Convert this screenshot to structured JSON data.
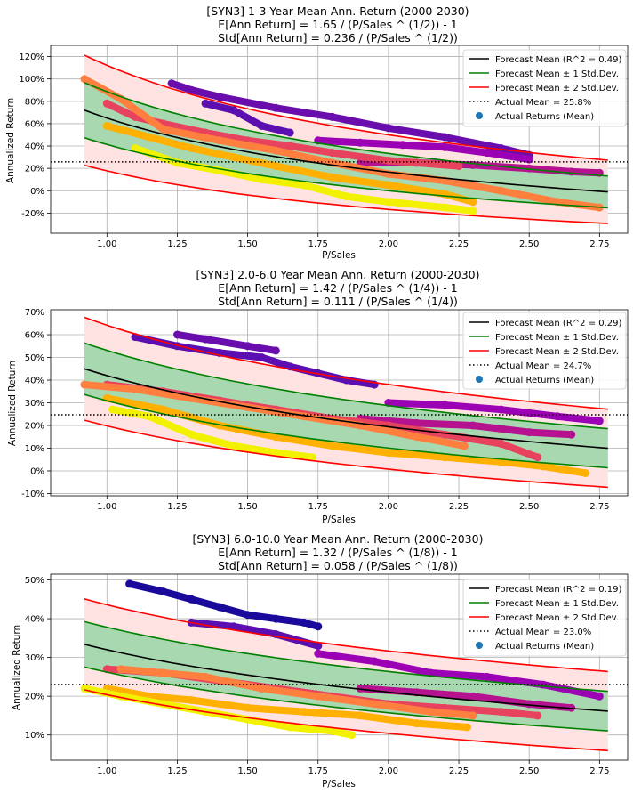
{
  "chart_data": [
    {
      "type": "scatter",
      "title_lines": [
        "[SYN3] 1-3 Year Mean Ann. Return (2000-2030)",
        "E[Ann Return] = 1.65 / (P/Sales ^ (1/2)) - 1",
        "Std[Ann Return] = 0.236 / (P/Sales ^ (1/2))"
      ],
      "xlabel": "P/Sales",
      "ylabel": "Annualized Return",
      "xlim": [
        0.8,
        2.85
      ],
      "ylim": [
        -0.38,
        1.3
      ],
      "xticks": [
        1.0,
        1.25,
        1.5,
        1.75,
        2.0,
        2.25,
        2.5,
        2.75
      ],
      "xtick_labels": [
        "1.00",
        "1.25",
        "1.50",
        "1.75",
        "2.00",
        "2.25",
        "2.50",
        "2.75"
      ],
      "yticks": [
        -0.2,
        0,
        0.2,
        0.4,
        0.6,
        0.8,
        1.0,
        1.2
      ],
      "ytick_labels": [
        "-20%",
        "0%",
        "20%",
        "40%",
        "60%",
        "80%",
        "100%",
        "120%"
      ],
      "model": {
        "a": 1.65,
        "s": 0.236,
        "p": 0.5,
        "x_range": [
          0.92,
          2.78
        ]
      },
      "actual_mean": 0.258,
      "legend": [
        "Forecast Mean (R^2 = 0.49)",
        "Forecast Mean ± 1 Std.Dev.",
        "Forecast Mean ± 2 Std.Dev.",
        "Actual Mean = 25.8%",
        "Actual Returns (Mean)"
      ],
      "scatter_series": [
        {
          "color": "#6a0dad",
          "points": [
            [
              1.23,
              0.96
            ],
            [
              1.3,
              0.9
            ],
            [
              1.4,
              0.84
            ],
            [
              1.6,
              0.74
            ],
            [
              1.8,
              0.66
            ],
            [
              2.0,
              0.56
            ],
            [
              2.2,
              0.48
            ],
            [
              2.4,
              0.38
            ],
            [
              2.5,
              0.32
            ]
          ]
        },
        {
          "color": "#5b0fb0",
          "points": [
            [
              1.35,
              0.78
            ],
            [
              1.45,
              0.72
            ],
            [
              1.55,
              0.58
            ],
            [
              1.65,
              0.52
            ]
          ]
        },
        {
          "color": "#9c00b4",
          "points": [
            [
              1.75,
              0.45
            ],
            [
              1.9,
              0.43
            ],
            [
              2.05,
              0.41
            ],
            [
              2.2,
              0.39
            ],
            [
              2.35,
              0.34
            ],
            [
              2.5,
              0.28
            ]
          ]
        },
        {
          "color": "#b5128f",
          "points": [
            [
              1.9,
              0.25
            ],
            [
              2.1,
              0.25
            ],
            [
              2.3,
              0.23
            ],
            [
              2.5,
              0.2
            ],
            [
              2.65,
              0.17
            ],
            [
              2.75,
              0.16
            ]
          ]
        },
        {
          "color": "#e8435e",
          "points": [
            [
              1.0,
              0.78
            ],
            [
              1.1,
              0.66
            ],
            [
              1.2,
              0.6
            ],
            [
              1.35,
              0.52
            ],
            [
              1.5,
              0.45
            ],
            [
              1.65,
              0.4
            ],
            [
              1.8,
              0.34
            ],
            [
              2.0,
              0.27
            ],
            [
              2.25,
              0.22
            ]
          ]
        },
        {
          "color": "#ff7f3f",
          "points": [
            [
              0.92,
              1.0
            ],
            [
              1.05,
              0.82
            ],
            [
              1.2,
              0.55
            ],
            [
              1.4,
              0.45
            ],
            [
              1.6,
              0.36
            ],
            [
              1.8,
              0.25
            ],
            [
              2.0,
              0.15
            ],
            [
              2.2,
              0.09
            ],
            [
              2.4,
              0.0
            ],
            [
              2.6,
              -0.1
            ],
            [
              2.75,
              -0.15
            ]
          ]
        },
        {
          "color": "#ffb000",
          "points": [
            [
              1.0,
              0.58
            ],
            [
              1.15,
              0.48
            ],
            [
              1.3,
              0.38
            ],
            [
              1.45,
              0.3
            ],
            [
              1.6,
              0.22
            ],
            [
              1.8,
              0.12
            ],
            [
              2.0,
              0.05
            ],
            [
              2.2,
              -0.03
            ],
            [
              2.3,
              -0.1
            ]
          ]
        },
        {
          "color": "#f2f200",
          "points": [
            [
              1.1,
              0.38
            ],
            [
              1.25,
              0.25
            ],
            [
              1.4,
              0.18
            ],
            [
              1.55,
              0.1
            ],
            [
              1.7,
              0.05
            ],
            [
              1.85,
              -0.05
            ],
            [
              2.0,
              -0.1
            ],
            [
              2.2,
              -0.15
            ],
            [
              2.3,
              -0.18
            ]
          ]
        }
      ]
    },
    {
      "type": "scatter",
      "title_lines": [
        "[SYN3] 2.0-6.0 Year Mean Ann. Return (2000-2030)",
        "E[Ann Return] = 1.42 / (P/Sales ^ (1/4)) - 1",
        "Std[Ann Return] = 0.111 / (P/Sales ^ (1/4))"
      ],
      "xlabel": "P/Sales",
      "ylabel": "Annualized Return",
      "xlim": [
        0.8,
        2.85
      ],
      "ylim": [
        -0.11,
        0.71
      ],
      "xticks": [
        1.0,
        1.25,
        1.5,
        1.75,
        2.0,
        2.25,
        2.5,
        2.75
      ],
      "xtick_labels": [
        "1.00",
        "1.25",
        "1.50",
        "1.75",
        "2.00",
        "2.25",
        "2.50",
        "2.75"
      ],
      "yticks": [
        -0.1,
        0,
        0.1,
        0.2,
        0.3,
        0.4,
        0.5,
        0.6,
        0.7
      ],
      "ytick_labels": [
        "-10%",
        "0%",
        "10%",
        "20%",
        "30%",
        "40%",
        "50%",
        "60%",
        "70%"
      ],
      "model": {
        "a": 1.42,
        "s": 0.111,
        "p": 0.25,
        "x_range": [
          0.92,
          2.78
        ]
      },
      "actual_mean": 0.247,
      "legend": [
        "Forecast Mean (R^2 = 0.29)",
        "Forecast Mean ± 1 Std.Dev.",
        "Forecast Mean ± 2 Std.Dev.",
        "Actual Mean = 24.7%",
        "Actual Returns (Mean)"
      ],
      "scatter_series": [
        {
          "color": "#5b0fb0",
          "points": [
            [
              1.1,
              0.59
            ],
            [
              1.25,
              0.55
            ],
            [
              1.4,
              0.52
            ],
            [
              1.55,
              0.5
            ],
            [
              1.65,
              0.46
            ],
            [
              1.75,
              0.43
            ],
            [
              1.85,
              0.4
            ],
            [
              1.95,
              0.38
            ]
          ]
        },
        {
          "color": "#6a0dad",
          "points": [
            [
              1.25,
              0.6
            ],
            [
              1.35,
              0.58
            ],
            [
              1.5,
              0.55
            ],
            [
              1.6,
              0.53
            ]
          ]
        },
        {
          "color": "#9c00b4",
          "points": [
            [
              2.0,
              0.3
            ],
            [
              2.2,
              0.29
            ],
            [
              2.4,
              0.27
            ],
            [
              2.6,
              0.24
            ],
            [
              2.75,
              0.22
            ]
          ]
        },
        {
          "color": "#b5128f",
          "points": [
            [
              1.9,
              0.23
            ],
            [
              2.1,
              0.21
            ],
            [
              2.3,
              0.2
            ],
            [
              2.5,
              0.17
            ],
            [
              2.65,
              0.16
            ]
          ]
        },
        {
          "color": "#e8435e",
          "points": [
            [
              1.0,
              0.38
            ],
            [
              1.2,
              0.35
            ],
            [
              1.4,
              0.31
            ],
            [
              1.6,
              0.27
            ],
            [
              1.8,
              0.23
            ],
            [
              2.0,
              0.2
            ],
            [
              2.2,
              0.16
            ],
            [
              2.4,
              0.12
            ],
            [
              2.53,
              0.06
            ]
          ]
        },
        {
          "color": "#ff7f3f",
          "points": [
            [
              0.92,
              0.38
            ],
            [
              1.1,
              0.36
            ],
            [
              1.3,
              0.32
            ],
            [
              1.5,
              0.28
            ],
            [
              1.7,
              0.24
            ],
            [
              1.9,
              0.2
            ],
            [
              2.1,
              0.15
            ],
            [
              2.27,
              0.11
            ]
          ]
        },
        {
          "color": "#ffb000",
          "points": [
            [
              1.0,
              0.32
            ],
            [
              1.2,
              0.27
            ],
            [
              1.4,
              0.2
            ],
            [
              1.6,
              0.15
            ],
            [
              1.8,
              0.11
            ],
            [
              2.0,
              0.08
            ],
            [
              2.2,
              0.06
            ],
            [
              2.4,
              0.04
            ],
            [
              2.55,
              0.02
            ],
            [
              2.7,
              -0.01
            ]
          ]
        },
        {
          "color": "#f2f200",
          "points": [
            [
              1.02,
              0.27
            ],
            [
              1.15,
              0.24
            ],
            [
              1.3,
              0.16
            ],
            [
              1.45,
              0.11
            ],
            [
              1.6,
              0.08
            ],
            [
              1.73,
              0.06
            ]
          ]
        }
      ]
    },
    {
      "type": "scatter",
      "title_lines": [
        "[SYN3] 6.0-10.0 Year Mean Ann. Return (2000-2030)",
        "E[Ann Return] = 1.32 / (P/Sales ^ (1/8)) - 1",
        "Std[Ann Return] = 0.058 / (P/Sales ^ (1/8))"
      ],
      "xlabel": "P/Sales",
      "ylabel": "Annualized Return",
      "xlim": [
        0.8,
        2.85
      ],
      "ylim": [
        0.035,
        0.515
      ],
      "xticks": [
        1.0,
        1.25,
        1.5,
        1.75,
        2.0,
        2.25,
        2.5,
        2.75
      ],
      "xtick_labels": [
        "1.00",
        "1.25",
        "1.50",
        "1.75",
        "2.00",
        "2.25",
        "2.50",
        "2.75"
      ],
      "yticks": [
        0.1,
        0.2,
        0.3,
        0.4,
        0.5
      ],
      "ytick_labels": [
        "10%",
        "20%",
        "30%",
        "40%",
        "50%"
      ],
      "model": {
        "a": 1.32,
        "s": 0.058,
        "p": 0.125,
        "x_range": [
          0.92,
          2.78
        ]
      },
      "actual_mean": 0.23,
      "legend": [
        "Forecast Mean (R^2 = 0.19)",
        "Forecast Mean ± 1 Std.Dev.",
        "Forecast Mean ± 2 Std.Dev.",
        "Actual Mean = 23.0%",
        "Actual Returns (Mean)"
      ],
      "scatter_series": [
        {
          "color": "#1a0a9c",
          "points": [
            [
              1.08,
              0.49
            ],
            [
              1.2,
              0.47
            ],
            [
              1.3,
              0.45
            ],
            [
              1.4,
              0.43
            ],
            [
              1.5,
              0.41
            ],
            [
              1.6,
              0.4
            ],
            [
              1.7,
              0.39
            ],
            [
              1.75,
              0.38
            ]
          ]
        },
        {
          "color": "#5b0fb0",
          "points": [
            [
              1.3,
              0.39
            ],
            [
              1.45,
              0.38
            ],
            [
              1.6,
              0.36
            ],
            [
              1.75,
              0.33
            ]
          ]
        },
        {
          "color": "#9c00b4",
          "points": [
            [
              1.75,
              0.31
            ],
            [
              1.95,
              0.29
            ],
            [
              2.15,
              0.26
            ],
            [
              2.35,
              0.25
            ],
            [
              2.55,
              0.23
            ],
            [
              2.75,
              0.2
            ]
          ]
        },
        {
          "color": "#b5128f",
          "points": [
            [
              1.9,
              0.22
            ],
            [
              2.1,
              0.21
            ],
            [
              2.3,
              0.2
            ],
            [
              2.5,
              0.18
            ],
            [
              2.65,
              0.17
            ]
          ]
        },
        {
          "color": "#e8435e",
          "points": [
            [
              1.0,
              0.27
            ],
            [
              1.2,
              0.26
            ],
            [
              1.4,
              0.24
            ],
            [
              1.6,
              0.22
            ],
            [
              1.8,
              0.2
            ],
            [
              2.0,
              0.18
            ],
            [
              2.2,
              0.17
            ],
            [
              2.4,
              0.16
            ],
            [
              2.53,
              0.15
            ]
          ]
        },
        {
          "color": "#ff7f3f",
          "points": [
            [
              1.05,
              0.27
            ],
            [
              1.2,
              0.26
            ],
            [
              1.35,
              0.25
            ],
            [
              1.55,
              0.22
            ],
            [
              1.75,
              0.2
            ],
            [
              1.95,
              0.18
            ],
            [
              2.15,
              0.16
            ],
            [
              2.3,
              0.15
            ]
          ]
        },
        {
          "color": "#ffb000",
          "points": [
            [
              1.0,
              0.22
            ],
            [
              1.15,
              0.2
            ],
            [
              1.3,
              0.19
            ],
            [
              1.5,
              0.17
            ],
            [
              1.7,
              0.16
            ],
            [
              1.9,
              0.15
            ],
            [
              2.1,
              0.13
            ],
            [
              2.28,
              0.12
            ]
          ]
        },
        {
          "color": "#f2f200",
          "points": [
            [
              0.92,
              0.22
            ],
            [
              1.05,
              0.2
            ],
            [
              1.2,
              0.18
            ],
            [
              1.35,
              0.16
            ],
            [
              1.5,
              0.14
            ],
            [
              1.65,
              0.12
            ],
            [
              1.8,
              0.11
            ],
            [
              1.87,
              0.1
            ]
          ]
        }
      ]
    }
  ],
  "colors": {
    "mean_line": "#000000",
    "std1": "#008000",
    "std2": "#ff0000",
    "band1_fill": "#a8d8b0",
    "band2_fill": "#ffe2e2",
    "actual_mean_line": "#000000",
    "legend_marker": "#1f77b4"
  }
}
